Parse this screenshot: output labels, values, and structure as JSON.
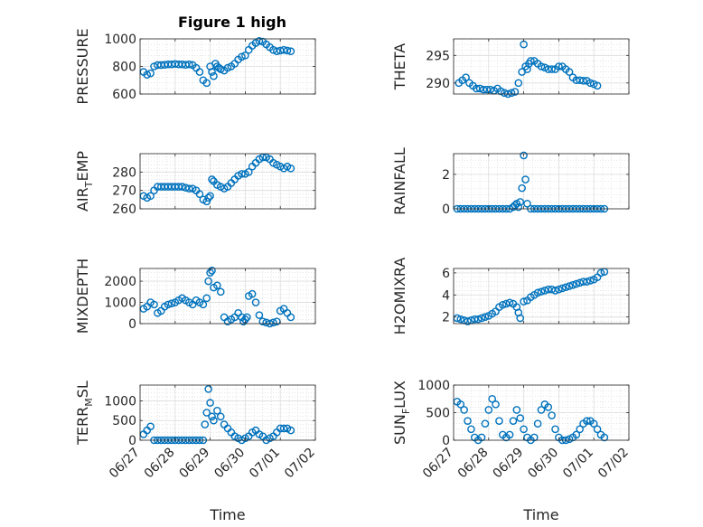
{
  "figure": {
    "title": "Figure 1 high",
    "x_label": "Time",
    "x_tick_labels": [
      "06/27",
      "06/28",
      "06/29",
      "06/30",
      "07/01",
      "07/02"
    ],
    "marker": "open-circle",
    "marker_color": "#0072BD",
    "grid": "on (major + minor dotted)"
  },
  "chart_data": [
    {
      "type": "scatter",
      "ylabel": "PRESSURE",
      "ylim": [
        600,
        1000
      ],
      "yticks": [
        600,
        800,
        1000
      ],
      "x": [
        0.1,
        0.2,
        0.3,
        0.4,
        0.5,
        0.6,
        0.7,
        0.8,
        0.9,
        1.0,
        1.1,
        1.2,
        1.3,
        1.4,
        1.5,
        1.6,
        1.7,
        1.8,
        1.9,
        2.0,
        2.05,
        2.1,
        2.15,
        2.2,
        2.25,
        2.3,
        2.4,
        2.5,
        2.6,
        2.7,
        2.8,
        2.9,
        3.0,
        3.1,
        3.2,
        3.3,
        3.4,
        3.5,
        3.6,
        3.7,
        3.8,
        3.9,
        4.0,
        4.1,
        4.2,
        4.3
      ],
      "y": [
        760,
        740,
        750,
        800,
        810,
        810,
        812,
        815,
        815,
        818,
        815,
        815,
        812,
        815,
        810,
        790,
        760,
        700,
        680,
        800,
        760,
        730,
        820,
        800,
        790,
        780,
        770,
        790,
        800,
        820,
        850,
        870,
        880,
        920,
        950,
        970,
        985,
        980,
        960,
        940,
        920,
        910,
        915,
        920,
        915,
        910
      ]
    },
    {
      "type": "scatter",
      "ylabel": "THETA",
      "ylim": [
        288,
        298
      ],
      "yticks": [
        290,
        295
      ],
      "x": [
        0.15,
        0.25,
        0.35,
        0.45,
        0.55,
        0.65,
        0.75,
        0.85,
        0.95,
        1.05,
        1.15,
        1.25,
        1.35,
        1.45,
        1.55,
        1.65,
        1.75,
        1.85,
        1.95,
        2.0,
        2.05,
        2.1,
        2.15,
        2.2,
        2.3,
        2.4,
        2.5,
        2.6,
        2.7,
        2.8,
        2.9,
        3.0,
        3.1,
        3.2,
        3.3,
        3.4,
        3.5,
        3.6,
        3.7,
        3.8,
        3.9,
        4.0,
        4.1
      ],
      "y": [
        290,
        290.5,
        291,
        290,
        289.5,
        289,
        289,
        288.8,
        288.8,
        288.8,
        288.6,
        289,
        288.5,
        288.2,
        288,
        288.2,
        288.4,
        290,
        292,
        297,
        293,
        292.5,
        293.5,
        294,
        294,
        293.5,
        293,
        292.8,
        292.5,
        292.5,
        292.5,
        293,
        293,
        292.5,
        292,
        291,
        290.5,
        290.5,
        290.4,
        290.4,
        290,
        289.8,
        289.5
      ]
    },
    {
      "type": "scatter",
      "ylabel": "AIR_TEMP",
      "ylim": [
        260,
        290
      ],
      "yticks": [
        260,
        270,
        280
      ],
      "x": [
        0.1,
        0.2,
        0.3,
        0.4,
        0.5,
        0.6,
        0.7,
        0.8,
        0.9,
        1.0,
        1.1,
        1.2,
        1.3,
        1.4,
        1.5,
        1.6,
        1.7,
        1.8,
        1.9,
        1.95,
        2.0,
        2.05,
        2.1,
        2.2,
        2.3,
        2.4,
        2.5,
        2.6,
        2.7,
        2.8,
        2.9,
        3.0,
        3.1,
        3.2,
        3.3,
        3.4,
        3.5,
        3.6,
        3.7,
        3.8,
        3.9,
        4.0,
        4.1,
        4.2,
        4.3
      ],
      "y": [
        267,
        266,
        267,
        270,
        272,
        272,
        272,
        272,
        272,
        272,
        272,
        272,
        271.5,
        271,
        271,
        270,
        268,
        265,
        264,
        266,
        267,
        276,
        275,
        273,
        272,
        271,
        272,
        274,
        276,
        278,
        279,
        279,
        280,
        283,
        285,
        287,
        288,
        288,
        287,
        285,
        284,
        283,
        282,
        283,
        282
      ]
    },
    {
      "type": "scatter",
      "ylabel": "RAINFALL",
      "ylim": [
        0,
        3.2
      ],
      "yticks": [
        0,
        2
      ],
      "x": [
        0.1,
        0.2,
        0.3,
        0.4,
        0.5,
        0.6,
        0.7,
        0.8,
        0.9,
        1.0,
        1.1,
        1.2,
        1.3,
        1.4,
        1.5,
        1.6,
        1.7,
        1.75,
        1.8,
        1.85,
        1.9,
        1.95,
        2.0,
        2.05,
        2.1,
        2.2,
        2.3,
        2.4,
        2.5,
        2.6,
        2.7,
        2.8,
        2.9,
        3.0,
        3.1,
        3.2,
        3.3,
        3.4,
        3.5,
        3.6,
        3.7,
        3.8,
        3.9,
        4.0,
        4.1,
        4.2,
        4.3
      ],
      "y": [
        0,
        0,
        0,
        0,
        0,
        0,
        0,
        0,
        0,
        0,
        0,
        0,
        0,
        0,
        0,
        0,
        0.1,
        0.2,
        0.3,
        0.1,
        0.4,
        1.2,
        3.1,
        1.7,
        0.3,
        0,
        0,
        0,
        0,
        0,
        0,
        0,
        0,
        0,
        0,
        0,
        0,
        0,
        0,
        0,
        0,
        0,
        0,
        0,
        0,
        0,
        0
      ]
    },
    {
      "type": "scatter",
      "ylabel": "MIXDEPTH",
      "ylim": [
        0,
        2600
      ],
      "yticks": [
        0,
        1000,
        2000
      ],
      "x": [
        0.1,
        0.2,
        0.3,
        0.4,
        0.5,
        0.6,
        0.7,
        0.8,
        0.9,
        1.0,
        1.1,
        1.2,
        1.3,
        1.4,
        1.5,
        1.6,
        1.7,
        1.8,
        1.9,
        1.95,
        2.0,
        2.05,
        2.1,
        2.2,
        2.3,
        2.4,
        2.5,
        2.6,
        2.7,
        2.8,
        2.9,
        2.95,
        3.0,
        3.05,
        3.1,
        3.2,
        3.3,
        3.4,
        3.5,
        3.6,
        3.7,
        3.8,
        3.9,
        4.0,
        4.1,
        4.2,
        4.3
      ],
      "y": [
        700,
        800,
        1000,
        900,
        500,
        600,
        800,
        900,
        950,
        1000,
        1100,
        1200,
        1100,
        1000,
        900,
        1100,
        1000,
        900,
        1200,
        2000,
        2400,
        2500,
        1700,
        1800,
        1500,
        300,
        100,
        200,
        300,
        500,
        300,
        100,
        200,
        300,
        1300,
        1400,
        1000,
        400,
        100,
        50,
        0,
        50,
        100,
        600,
        700,
        500,
        300
      ]
    },
    {
      "type": "scatter",
      "ylabel": "H2OMIXRA",
      "ylim": [
        1.4,
        6.4
      ],
      "yticks": [
        2,
        4,
        6
      ],
      "x": [
        0.1,
        0.2,
        0.3,
        0.4,
        0.5,
        0.6,
        0.7,
        0.8,
        0.9,
        1.0,
        1.1,
        1.2,
        1.3,
        1.4,
        1.5,
        1.6,
        1.7,
        1.8,
        1.85,
        1.9,
        2.0,
        2.1,
        2.2,
        2.3,
        2.4,
        2.5,
        2.6,
        2.7,
        2.8,
        2.9,
        3.0,
        3.1,
        3.2,
        3.3,
        3.4,
        3.5,
        3.6,
        3.7,
        3.8,
        3.9,
        4.0,
        4.1,
        4.2,
        4.3
      ],
      "y": [
        1.9,
        1.8,
        1.7,
        1.6,
        1.7,
        1.8,
        1.8,
        1.9,
        2.0,
        2.1,
        2.3,
        2.5,
        2.9,
        3.1,
        3.2,
        3.3,
        3.2,
        2.9,
        2.4,
        1.9,
        3.4,
        3.5,
        3.8,
        4.0,
        4.2,
        4.3,
        4.4,
        4.5,
        4.5,
        4.4,
        4.5,
        4.6,
        4.7,
        4.8,
        4.9,
        5.0,
        5.1,
        5.2,
        5.2,
        5.3,
        5.4,
        5.6,
        6.0,
        6.1
      ]
    },
    {
      "type": "scatter",
      "ylabel": "TERR_MSL",
      "ylim": [
        0,
        1400
      ],
      "yticks": [
        0,
        500,
        1000
      ],
      "x": [
        0.1,
        0.2,
        0.3,
        0.4,
        0.5,
        0.6,
        0.7,
        0.8,
        0.9,
        1.0,
        1.1,
        1.2,
        1.3,
        1.4,
        1.5,
        1.6,
        1.7,
        1.8,
        1.85,
        1.9,
        1.95,
        2.0,
        2.05,
        2.1,
        2.2,
        2.3,
        2.4,
        2.5,
        2.6,
        2.7,
        2.8,
        2.9,
        3.0,
        3.1,
        3.2,
        3.3,
        3.4,
        3.5,
        3.6,
        3.7,
        3.8,
        3.9,
        4.0,
        4.1,
        4.2,
        4.3
      ],
      "y": [
        150,
        250,
        350,
        0,
        0,
        0,
        0,
        0,
        0,
        0,
        0,
        0,
        0,
        0,
        0,
        0,
        0,
        0,
        400,
        700,
        1300,
        950,
        600,
        500,
        750,
        600,
        400,
        300,
        200,
        100,
        50,
        0,
        50,
        100,
        200,
        250,
        150,
        100,
        0,
        50,
        100,
        200,
        300,
        300,
        300,
        250
      ]
    },
    {
      "type": "scatter",
      "ylabel": "SUN_FLUX",
      "ylim": [
        0,
        1000
      ],
      "yticks": [
        0,
        500,
        1000
      ],
      "x": [
        0.1,
        0.2,
        0.3,
        0.4,
        0.5,
        0.6,
        0.7,
        0.8,
        0.9,
        1.0,
        1.1,
        1.2,
        1.3,
        1.4,
        1.5,
        1.6,
        1.7,
        1.8,
        1.9,
        2.0,
        2.1,
        2.2,
        2.3,
        2.4,
        2.5,
        2.6,
        2.7,
        2.8,
        2.9,
        3.0,
        3.1,
        3.2,
        3.3,
        3.4,
        3.5,
        3.6,
        3.7,
        3.8,
        3.9,
        4.0,
        4.1,
        4.2,
        4.3
      ],
      "y": [
        700,
        650,
        550,
        350,
        200,
        50,
        0,
        50,
        300,
        550,
        750,
        650,
        350,
        100,
        50,
        100,
        350,
        550,
        400,
        200,
        50,
        0,
        50,
        300,
        550,
        650,
        600,
        450,
        200,
        50,
        0,
        0,
        20,
        50,
        100,
        200,
        300,
        350,
        350,
        300,
        200,
        100,
        50
      ]
    }
  ]
}
